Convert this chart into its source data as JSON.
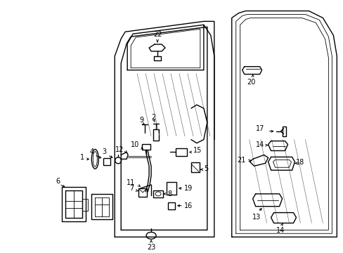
{
  "bg_color": "#ffffff",
  "fig_width": 4.89,
  "fig_height": 3.6,
  "dpi": 100,
  "line_color": "#000000",
  "lw_main": 1.0,
  "lw_thin": 0.6,
  "font_size": 7.0
}
